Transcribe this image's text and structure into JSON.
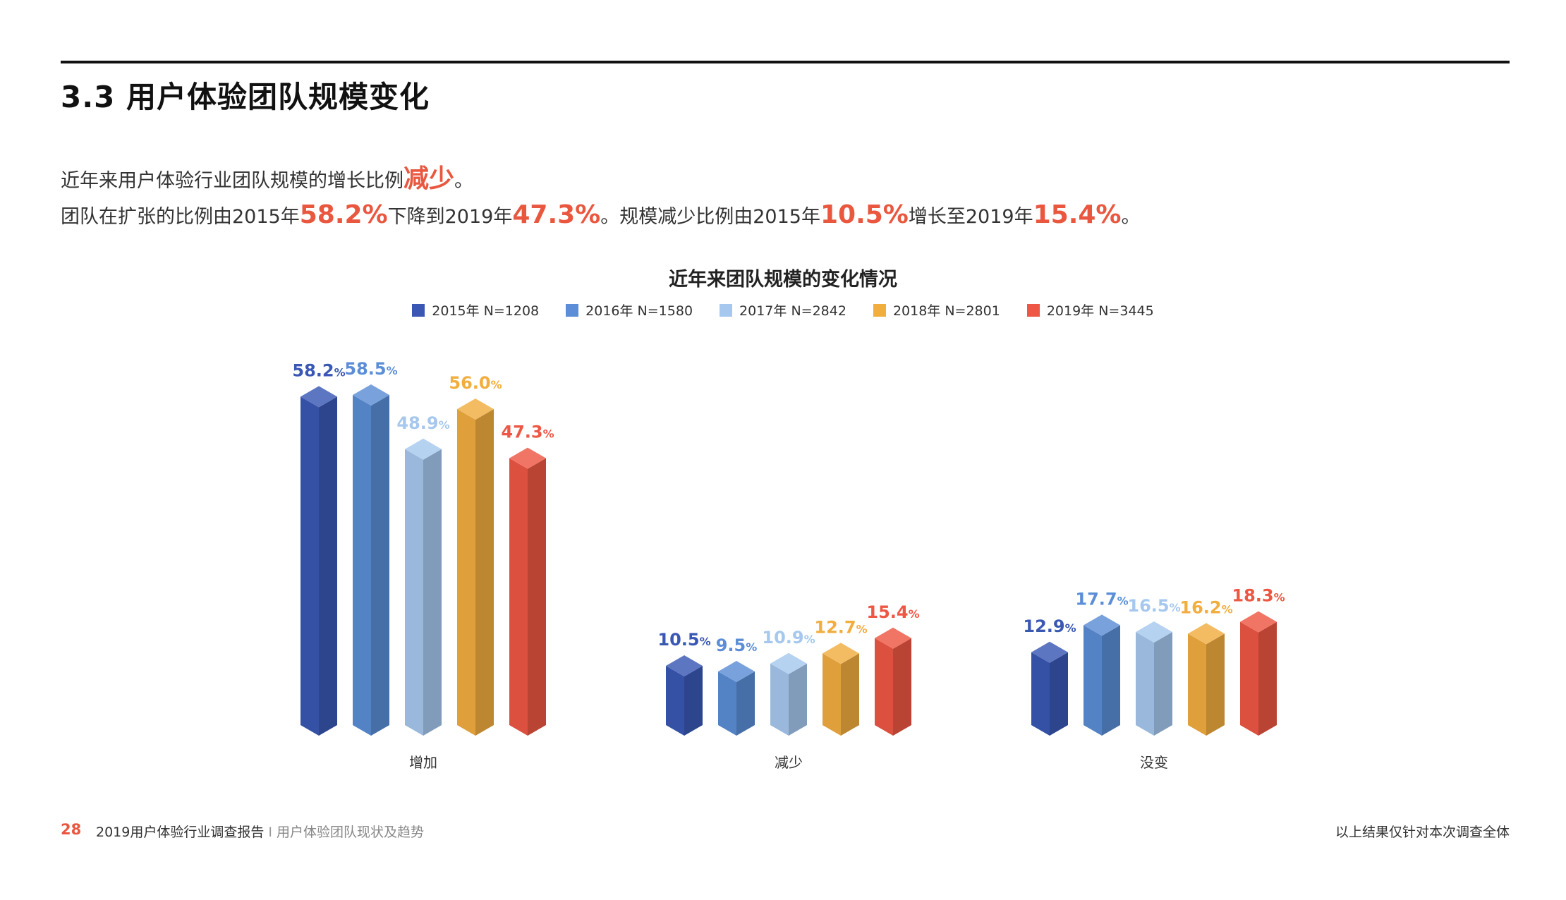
{
  "section_title": "3.3 用户体验团队规模变化",
  "summary": {
    "line1_a": "近年来用户体验行业团队规模的增长比例",
    "line1_hl": "减少",
    "line1_b": "。",
    "line2_a": "团队在扩张的比例由2015年",
    "line2_hl1": "58.2%",
    "line2_b": "下降到2019年",
    "line2_hl2": "47.3%",
    "line2_c": "。规模减少比例由2015年",
    "line2_hl3": "10.5%",
    "line2_d": "增长至2019年",
    "line2_hl4": "15.4%",
    "line2_e": "。"
  },
  "chart_data": {
    "type": "bar",
    "title": "近年来团队规模的变化情况",
    "categories": [
      "增加",
      "减少",
      "没变"
    ],
    "series": [
      {
        "name": "2015年 N=1208",
        "color": "#3a58b3",
        "values": [
          58.2,
          10.5,
          12.9
        ]
      },
      {
        "name": "2016年 N=1580",
        "color": "#5b8ed6",
        "values": [
          58.5,
          9.5,
          17.7
        ]
      },
      {
        "name": "2017年 N=2842",
        "color": "#a6c8ee",
        "values": [
          48.9,
          10.9,
          16.5
        ]
      },
      {
        "name": "2018年 N=2801",
        "color": "#f2ad3f",
        "values": [
          56.0,
          12.7,
          16.2
        ]
      },
      {
        "name": "2019年 N=3445",
        "color": "#ee5743",
        "values": [
          47.3,
          15.4,
          18.3
        ]
      }
    ],
    "value_suffix": "%",
    "ylim": [
      0,
      60
    ],
    "legend_position": "top-center"
  },
  "footer": {
    "page_number": "28",
    "doc_title": "2019用户体验行业调查报告",
    "separator": "I",
    "doc_subtitle": "用户体验团队现状及趋势",
    "note": "以上结果仅针对本次调查全体"
  }
}
